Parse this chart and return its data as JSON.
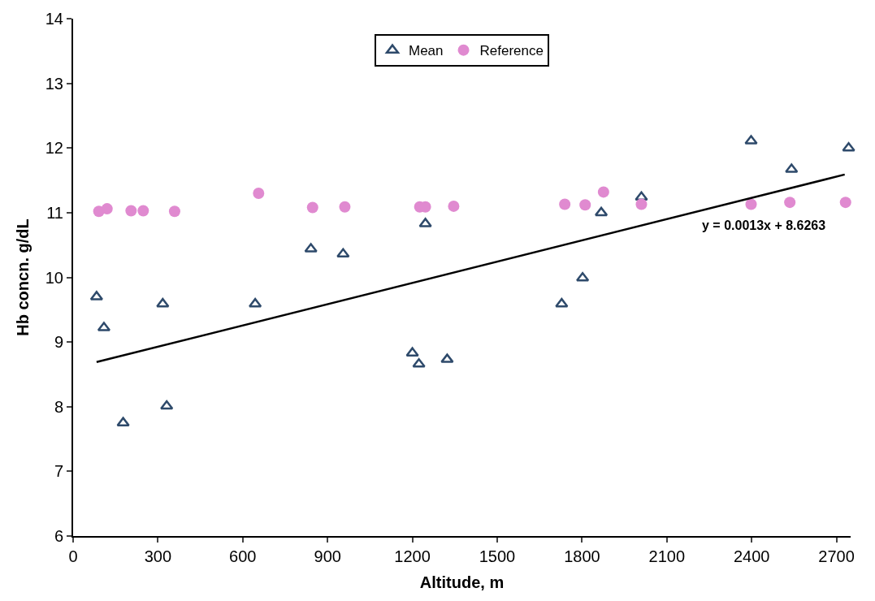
{
  "chart_data": {
    "type": "scatter",
    "xlabel": "Altitude, m",
    "ylabel": "Hb concn. g/dL",
    "xlim": [
      0,
      2750
    ],
    "xticks": [
      0,
      300,
      600,
      900,
      1200,
      1500,
      1800,
      2100,
      2400,
      2700
    ],
    "ylim": [
      6,
      14
    ],
    "yticks": [
      6,
      7,
      8,
      9,
      10,
      11,
      12,
      13,
      14
    ],
    "legend": "top",
    "annotations": [
      "y = 0.0013x + 8.6263"
    ],
    "series": [
      {
        "name": "Mean",
        "marker": "triangle",
        "color": "#2e4a6b",
        "x": [
          83,
          109,
          177,
          317,
          331,
          644,
          841,
          955,
          1200,
          1223,
          1246,
          1323,
          1728,
          1802,
          1868,
          2010,
          2398,
          2541,
          2743
        ],
        "values": [
          9.7,
          9.22,
          7.75,
          9.59,
          8.01,
          9.59,
          10.44,
          10.36,
          8.83,
          8.66,
          10.83,
          8.73,
          9.59,
          9.99,
          11.0,
          11.24,
          12.11,
          11.67,
          12.0
        ]
      },
      {
        "name": "Reference",
        "marker": "circle",
        "color": "#e08ad0",
        "x": [
          91,
          120,
          205,
          248,
          359,
          656,
          847,
          961,
          1226,
          1246,
          1346,
          1739,
          1811,
          1876,
          2010,
          2398,
          2535,
          2732
        ],
        "values": [
          11.02,
          11.06,
          11.03,
          11.03,
          11.02,
          11.3,
          11.08,
          11.09,
          11.09,
          11.09,
          11.1,
          11.13,
          11.12,
          11.32,
          11.13,
          11.13,
          11.16,
          11.16
        ]
      },
      {
        "type": "line",
        "color": "#000000",
        "line_style": "solid",
        "x": [
          83,
          2729
        ],
        "values": [
          8.69,
          11.59
        ]
      }
    ]
  }
}
